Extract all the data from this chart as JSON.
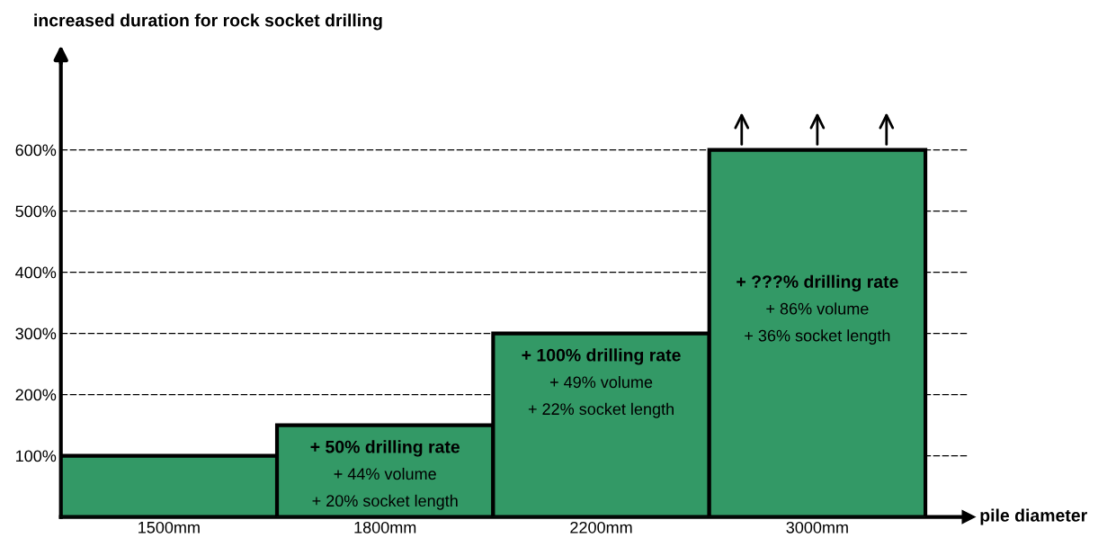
{
  "chart_data": {
    "type": "bar",
    "ylabel": "increased duration for rock socket drilling",
    "xlabel": "pile diameter",
    "categories": [
      "1500mm",
      "1800mm",
      "2200mm",
      "3000mm"
    ],
    "values": [
      100,
      150,
      300,
      600
    ],
    "color": "#339966",
    "ylim": [
      0,
      760
    ],
    "yticks": [
      {
        "value": 100,
        "label": "100%"
      },
      {
        "value": 200,
        "label": "200%"
      },
      {
        "value": 300,
        "label": "300%"
      },
      {
        "value": 400,
        "label": "400%"
      },
      {
        "value": 500,
        "label": "500%"
      },
      {
        "value": 600,
        "label": "600%"
      }
    ],
    "grid": "y",
    "annotations": [
      "+ 50% drilling rate",
      "+ 44% volume",
      "+ 20% socket length",
      "+ 100% drilling rate",
      "+ 49% volume",
      "+ 22% socket length",
      "+ ???% drilling rate",
      "+ 86% volume",
      "+ 36% socket length"
    ]
  }
}
